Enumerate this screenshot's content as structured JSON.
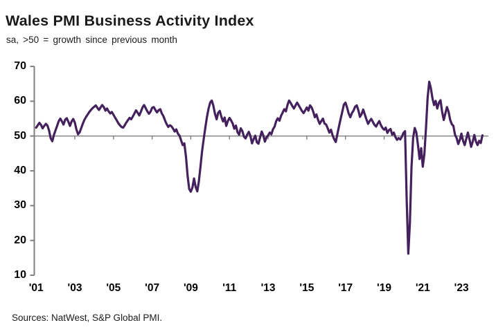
{
  "header": {
    "title": "Wales PMI Business Activity Index",
    "subtitle": "sa, >50 = growth since previous month"
  },
  "footer": {
    "source": "Sources: NatWest, S&P Global PMI."
  },
  "chart_data": {
    "type": "line",
    "title": "Wales PMI Business Activity Index",
    "subtitle": "sa, >50 = growth since previous month",
    "series_name": "Wales PMI Business Activity Index (sa)",
    "frequency": "monthly",
    "x_start": "2001-01",
    "x_end": "2024-02",
    "x_tick_labels": [
      "'01",
      "'03",
      "'05",
      "'07",
      "'09",
      "'11",
      "'13",
      "'15",
      "'17",
      "'19",
      "'21",
      "'23"
    ],
    "y_ticks": [
      70,
      60,
      50,
      40,
      30,
      20,
      10
    ],
    "ylim": [
      10,
      70
    ],
    "reference_line": 50,
    "grid": "reference line at 50 only",
    "legend": "none",
    "line_color": "#44205C",
    "axis_color": "#7F7F7F",
    "label_color": "#000000",
    "values": [
      52.4,
      53.1,
      53.8,
      53.2,
      52.2,
      52.9,
      53.5,
      53.0,
      51.6,
      49.4,
      48.5,
      50.3,
      51.6,
      52.9,
      54.3,
      55.0,
      54.2,
      53.3,
      54.7,
      55.1,
      54.1,
      52.9,
      54.2,
      54.9,
      53.9,
      51.9,
      50.5,
      51.1,
      52.3,
      53.6,
      54.7,
      55.5,
      56.2,
      56.9,
      57.5,
      58.0,
      58.4,
      58.8,
      58.1,
      57.5,
      58.2,
      58.9,
      58.3,
      57.3,
      57.9,
      57.1,
      56.5,
      56.9,
      56.1,
      55.3,
      54.5,
      53.7,
      53.1,
      52.6,
      52.4,
      53.1,
      53.9,
      54.6,
      55.2,
      54.8,
      55.6,
      56.5,
      57.4,
      56.7,
      55.9,
      57.0,
      58.2,
      58.9,
      58.0,
      57.1,
      56.4,
      57.0,
      58.1,
      58.3,
      57.5,
      56.8,
      57.4,
      57.7,
      56.5,
      55.7,
      54.5,
      53.4,
      52.6,
      53.1,
      52.8,
      52.1,
      51.3,
      51.9,
      50.7,
      50.1,
      48.7,
      47.4,
      47.9,
      44.0,
      38.6,
      34.8,
      34.0,
      35.2,
      37.8,
      35.4,
      34.1,
      37.0,
      41.2,
      45.6,
      49.2,
      52.4,
      55.4,
      57.8,
      59.6,
      60.2,
      58.7,
      56.4,
      54.8,
      56.7,
      57.2,
      55.5,
      54.2,
      55.3,
      52.9,
      54.3,
      55.2,
      54.5,
      53.6,
      52.1,
      53.0,
      51.1,
      50.4,
      52.2,
      51.4,
      49.8,
      49.3,
      50.4,
      51.2,
      50.0,
      47.9,
      49.1,
      50.1,
      48.2,
      47.8,
      49.6,
      51.3,
      50.2,
      48.4,
      49.6,
      50.2,
      51.0,
      50.5,
      51.9,
      52.7,
      54.3,
      55.1,
      54.4,
      55.8,
      56.7,
      57.7,
      57.1,
      58.9,
      60.2,
      59.5,
      58.6,
      57.9,
      58.8,
      59.6,
      58.8,
      58.0,
      57.2,
      56.6,
      57.4,
      58.2,
      57.3,
      58.8,
      58.2,
      57.0,
      55.4,
      56.2,
      54.6,
      53.5,
      54.3,
      55.0,
      53.6,
      53.3,
      52.2,
      51.0,
      51.8,
      50.2,
      49.1,
      48.3,
      50.6,
      52.8,
      54.9,
      56.9,
      59.0,
      59.6,
      58.2,
      56.5,
      55.4,
      56.6,
      57.3,
      58.4,
      58.8,
      57.4,
      55.5,
      56.3,
      57.6,
      56.2,
      54.8,
      53.5,
      54.3,
      54.9,
      54.1,
      53.2,
      52.7,
      53.6,
      54.3,
      53.1,
      52.3,
      51.8,
      52.4,
      50.9,
      51.7,
      52.0,
      50.4,
      51.0,
      49.7,
      48.9,
      49.4,
      49.0,
      49.8,
      50.9,
      51.4,
      31.5,
      16.2,
      25.0,
      41.0,
      49.5,
      52.3,
      51.0,
      47.5,
      43.4,
      46.5,
      41.2,
      44.8,
      52.5,
      61.0,
      65.6,
      63.8,
      60.8,
      58.9,
      60.1,
      57.9,
      59.6,
      60.3,
      57.0,
      54.6,
      56.5,
      58.3,
      57.0,
      54.6,
      53.4,
      52.9,
      50.4,
      49.4,
      47.7,
      48.9,
      50.7,
      48.6,
      47.4,
      49.2,
      51.0,
      49.0,
      46.9,
      48.4,
      50.3,
      48.4,
      47.4,
      48.6,
      48.0,
      50.2
    ]
  }
}
